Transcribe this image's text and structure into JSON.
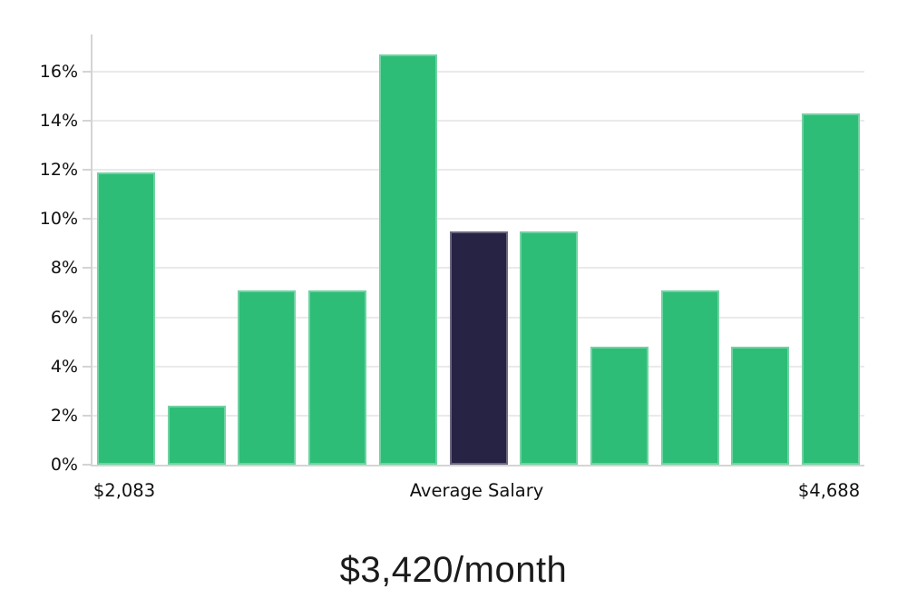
{
  "chart_data": {
    "type": "bar",
    "subtype": "histogram",
    "title": "$3,420/month",
    "values": [
      11.9,
      2.4,
      7.1,
      7.1,
      16.7,
      9.5,
      9.5,
      4.8,
      7.1,
      4.8,
      14.3
    ],
    "value_suffix": "%",
    "highlight_index": 5,
    "x_axis_labels": {
      "min": "$2,083",
      "center": "Average Salary",
      "max": "$4,688"
    },
    "y_tick_values": [
      0,
      2,
      4,
      6,
      8,
      10,
      12,
      14,
      16
    ],
    "y_tick_suffix": "%",
    "ylim": [
      0,
      17.5
    ],
    "grid": true,
    "legend_position": "none",
    "colors": {
      "bar": "#2dbd77",
      "highlight_bar": "#262345",
      "bar_edge": "#ffffff52",
      "gridline": "#eaeaea",
      "axis_line": "#d4d4d4",
      "tick_text": "#111111",
      "title_text": "#1b1b1b"
    }
  }
}
